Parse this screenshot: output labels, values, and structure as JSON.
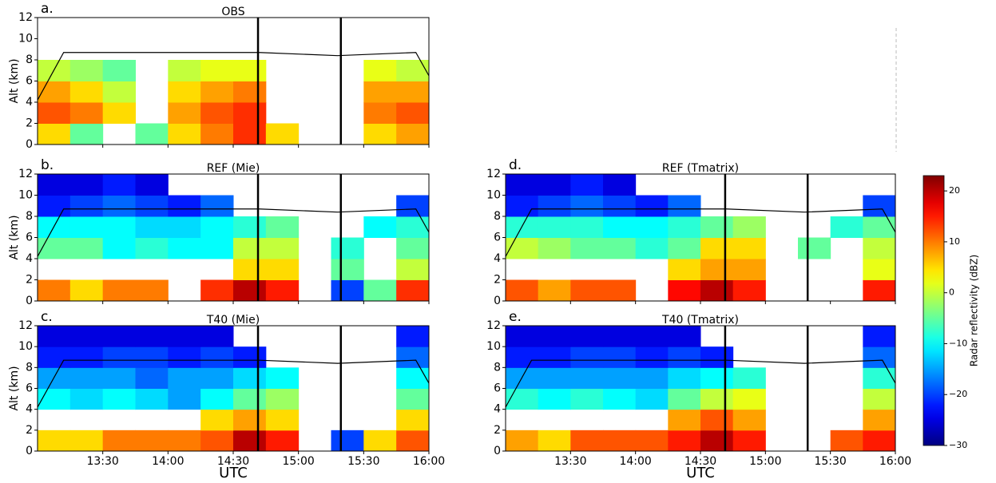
{
  "chart_data": [
    {
      "type": "heatmap",
      "letter": "a.",
      "title": "OBS",
      "ylabel": "Alt (km)",
      "xbins": [
        13,
        13.25,
        13.5,
        13.75,
        14,
        14.25,
        14.5,
        14.75,
        15,
        15.25,
        15.5,
        15.75,
        16
      ],
      "ybins": [
        0,
        2,
        4,
        6,
        8,
        10,
        12
      ],
      "values": [
        [
          5,
          -5,
          null,
          -5,
          5,
          10,
          14,
          5,
          null,
          null,
          5,
          8
        ],
        [
          12,
          10,
          5,
          null,
          8,
          12,
          14,
          null,
          null,
          null,
          10,
          12
        ],
        [
          8,
          5,
          0,
          null,
          5,
          8,
          10,
          null,
          null,
          null,
          8,
          8
        ],
        [
          0,
          -2,
          -5,
          null,
          0,
          2,
          2,
          null,
          null,
          null,
          2,
          0
        ],
        [
          null,
          null,
          null,
          null,
          null,
          null,
          null,
          null,
          null,
          null,
          null,
          null
        ],
        [
          null,
          null,
          null,
          null,
          null,
          null,
          null,
          null,
          null,
          null,
          null,
          null
        ]
      ],
      "xlim": [
        13,
        16
      ],
      "ylim": [
        0,
        12
      ],
      "yticks": [
        0,
        2,
        4,
        6,
        8,
        10,
        12
      ],
      "xticks": [
        13.5,
        14,
        14.5,
        15,
        15.5,
        16
      ],
      "track": {
        "x": [
          13,
          13.2,
          14.7,
          15.3,
          15.9,
          16
        ],
        "y": [
          4.2,
          8.7,
          8.7,
          8.4,
          8.7,
          6.5
        ]
      },
      "vlines": [
        14.69,
        15.325
      ]
    },
    {
      "type": "heatmap",
      "letter": "b.",
      "title": "REF (Mie)",
      "ylabel": "Alt (km)",
      "xbins": [
        13,
        13.25,
        13.5,
        13.75,
        14,
        14.25,
        14.5,
        14.75,
        15,
        15.25,
        15.5,
        15.75,
        16
      ],
      "ybins": [
        0,
        2,
        4,
        6,
        8,
        10,
        12
      ],
      "values": [
        [
          10,
          5,
          10,
          10,
          null,
          14,
          20,
          15,
          null,
          -20,
          -5,
          14
        ],
        [
          null,
          null,
          null,
          null,
          null,
          null,
          5,
          5,
          null,
          -5,
          null,
          0
        ],
        [
          -5,
          -5,
          -10,
          -8,
          -10,
          -10,
          0,
          0,
          null,
          -8,
          null,
          -5
        ],
        [
          -10,
          -10,
          -10,
          -12,
          -12,
          -10,
          -8,
          -5,
          null,
          null,
          -10,
          -8
        ],
        [
          -22,
          -20,
          -18,
          -20,
          -22,
          -18,
          null,
          null,
          null,
          null,
          null,
          -20
        ],
        [
          -25,
          -25,
          -22,
          -25,
          null,
          null,
          null,
          null,
          null,
          null,
          null,
          null
        ]
      ],
      "xlim": [
        13,
        16
      ],
      "ylim": [
        0,
        12
      ],
      "yticks": [
        0,
        2,
        4,
        6,
        8,
        10,
        12
      ],
      "xticks": [
        13.5,
        14,
        14.5,
        15,
        15.5,
        16
      ],
      "track": {
        "x": [
          13,
          13.2,
          14.7,
          15.3,
          15.9,
          16
        ],
        "y": [
          4.2,
          8.7,
          8.7,
          8.4,
          8.7,
          6.5
        ]
      },
      "vlines": [
        14.69,
        15.325
      ]
    },
    {
      "type": "heatmap",
      "letter": "c.",
      "title": "T40 (Mie)",
      "ylabel": "Alt (km)",
      "xlabel": "UTC",
      "xbins": [
        13,
        13.25,
        13.5,
        13.75,
        14,
        14.25,
        14.5,
        14.75,
        15,
        15.25,
        15.5,
        15.75,
        16
      ],
      "ybins": [
        0,
        2,
        4,
        6,
        8,
        10,
        12
      ],
      "values": [
        [
          5,
          5,
          10,
          10,
          10,
          12,
          20,
          15,
          null,
          -20,
          5,
          12
        ],
        [
          null,
          null,
          null,
          null,
          null,
          5,
          8,
          5,
          null,
          null,
          null,
          5
        ],
        [
          -10,
          -12,
          -10,
          -12,
          -15,
          -10,
          -5,
          -2,
          null,
          null,
          null,
          -5
        ],
        [
          -15,
          -15,
          -15,
          -18,
          -15,
          -15,
          -12,
          -10,
          null,
          null,
          null,
          -10
        ],
        [
          -22,
          -22,
          -20,
          -20,
          -22,
          -20,
          -22,
          null,
          null,
          null,
          null,
          -18
        ],
        [
          -25,
          -25,
          -25,
          -25,
          -25,
          -25,
          null,
          null,
          null,
          null,
          null,
          -22
        ]
      ],
      "xlim": [
        13,
        16
      ],
      "ylim": [
        0,
        12
      ],
      "yticks": [
        0,
        2,
        4,
        6,
        8,
        10,
        12
      ],
      "xticks": [
        {
          "value": 13.5,
          "label": "13:30"
        },
        {
          "value": 14,
          "label": "14:00"
        },
        {
          "value": 14.5,
          "label": "14:30"
        },
        {
          "value": 15,
          "label": "15:00"
        },
        {
          "value": 15.5,
          "label": "15:30"
        },
        {
          "value": 16,
          "label": "16:00"
        }
      ],
      "track": {
        "x": [
          13,
          13.2,
          14.7,
          15.3,
          15.9,
          16
        ],
        "y": [
          4.2,
          8.7,
          8.7,
          8.4,
          8.7,
          6.5
        ]
      },
      "vlines": [
        14.69,
        15.325
      ]
    },
    {
      "type": "heatmap",
      "letter": "d.",
      "title": "REF (Tmatrix)",
      "xbins": [
        13,
        13.25,
        13.5,
        13.75,
        14,
        14.25,
        14.5,
        14.75,
        15,
        15.25,
        15.5,
        15.75,
        16
      ],
      "ybins": [
        0,
        2,
        4,
        6,
        8,
        10,
        12
      ],
      "values": [
        [
          12,
          8,
          12,
          12,
          null,
          16,
          20,
          15,
          null,
          null,
          null,
          15
        ],
        [
          null,
          null,
          null,
          null,
          null,
          5,
          8,
          8,
          null,
          null,
          null,
          2
        ],
        [
          0,
          -2,
          -5,
          -5,
          -8,
          -5,
          5,
          5,
          null,
          -5,
          null,
          0
        ],
        [
          -8,
          -8,
          -8,
          -10,
          -10,
          -8,
          -5,
          -2,
          null,
          null,
          -8,
          -5
        ],
        [
          -22,
          -20,
          -18,
          -20,
          -22,
          -18,
          null,
          null,
          null,
          null,
          null,
          -20
        ],
        [
          -25,
          -25,
          -22,
          -25,
          null,
          null,
          null,
          null,
          null,
          null,
          null,
          null
        ]
      ],
      "xlim": [
        13,
        16
      ],
      "ylim": [
        0,
        12
      ],
      "yticks": [
        0,
        2,
        4,
        6,
        8,
        10,
        12
      ],
      "xticks": [
        13.5,
        14,
        14.5,
        15,
        15.5,
        16
      ],
      "track": {
        "x": [
          13,
          13.2,
          14.7,
          15.3,
          15.9,
          16
        ],
        "y": [
          4.2,
          8.7,
          8.7,
          8.4,
          8.7,
          6.5
        ]
      },
      "vlines": [
        14.69,
        15.325
      ]
    },
    {
      "type": "heatmap",
      "letter": "e.",
      "title": "T40 (Tmatrix)",
      "xlabel": "UTC",
      "xbins": [
        13,
        13.25,
        13.5,
        13.75,
        14,
        14.25,
        14.5,
        14.75,
        15,
        15.25,
        15.5,
        15.75,
        16
      ],
      "ybins": [
        0,
        2,
        4,
        6,
        8,
        10,
        12
      ],
      "values": [
        [
          8,
          5,
          12,
          12,
          12,
          15,
          20,
          15,
          null,
          null,
          12,
          15
        ],
        [
          null,
          null,
          null,
          null,
          null,
          8,
          12,
          8,
          null,
          null,
          null,
          8
        ],
        [
          -8,
          -10,
          -8,
          -10,
          -12,
          -5,
          0,
          2,
          null,
          null,
          null,
          0
        ],
        [
          -15,
          -15,
          -15,
          -15,
          -15,
          -12,
          -10,
          -8,
          null,
          null,
          null,
          -8
        ],
        [
          -22,
          -22,
          -20,
          -20,
          -22,
          -20,
          -22,
          null,
          null,
          null,
          null,
          -18
        ],
        [
          -25,
          -25,
          -25,
          -25,
          -25,
          -25,
          null,
          null,
          null,
          null,
          null,
          -22
        ]
      ],
      "xlim": [
        13,
        16
      ],
      "ylim": [
        0,
        12
      ],
      "yticks": [
        0,
        2,
        4,
        6,
        8,
        10,
        12
      ],
      "xticks": [
        {
          "value": 13.5,
          "label": "13:30"
        },
        {
          "value": 14,
          "label": "14:00"
        },
        {
          "value": 14.5,
          "label": "14:30"
        },
        {
          "value": 15,
          "label": "15:00"
        },
        {
          "value": 15.5,
          "label": "15:30"
        },
        {
          "value": 16,
          "label": "16:00"
        }
      ],
      "track": {
        "x": [
          13,
          13.2,
          14.7,
          15.3,
          15.9,
          16
        ],
        "y": [
          4.2,
          8.7,
          8.7,
          8.4,
          8.7,
          6.5
        ]
      },
      "vlines": [
        14.69,
        15.325
      ]
    },
    {
      "type": "colorbar",
      "label": "Radar reflectivity (dBZ)",
      "clim": [
        -30,
        23
      ],
      "ticks": [
        {
          "value": -30,
          "label": "−30"
        },
        {
          "value": -20,
          "label": "−20"
        },
        {
          "value": -10,
          "label": "−10"
        },
        0,
        10,
        20
      ]
    }
  ]
}
